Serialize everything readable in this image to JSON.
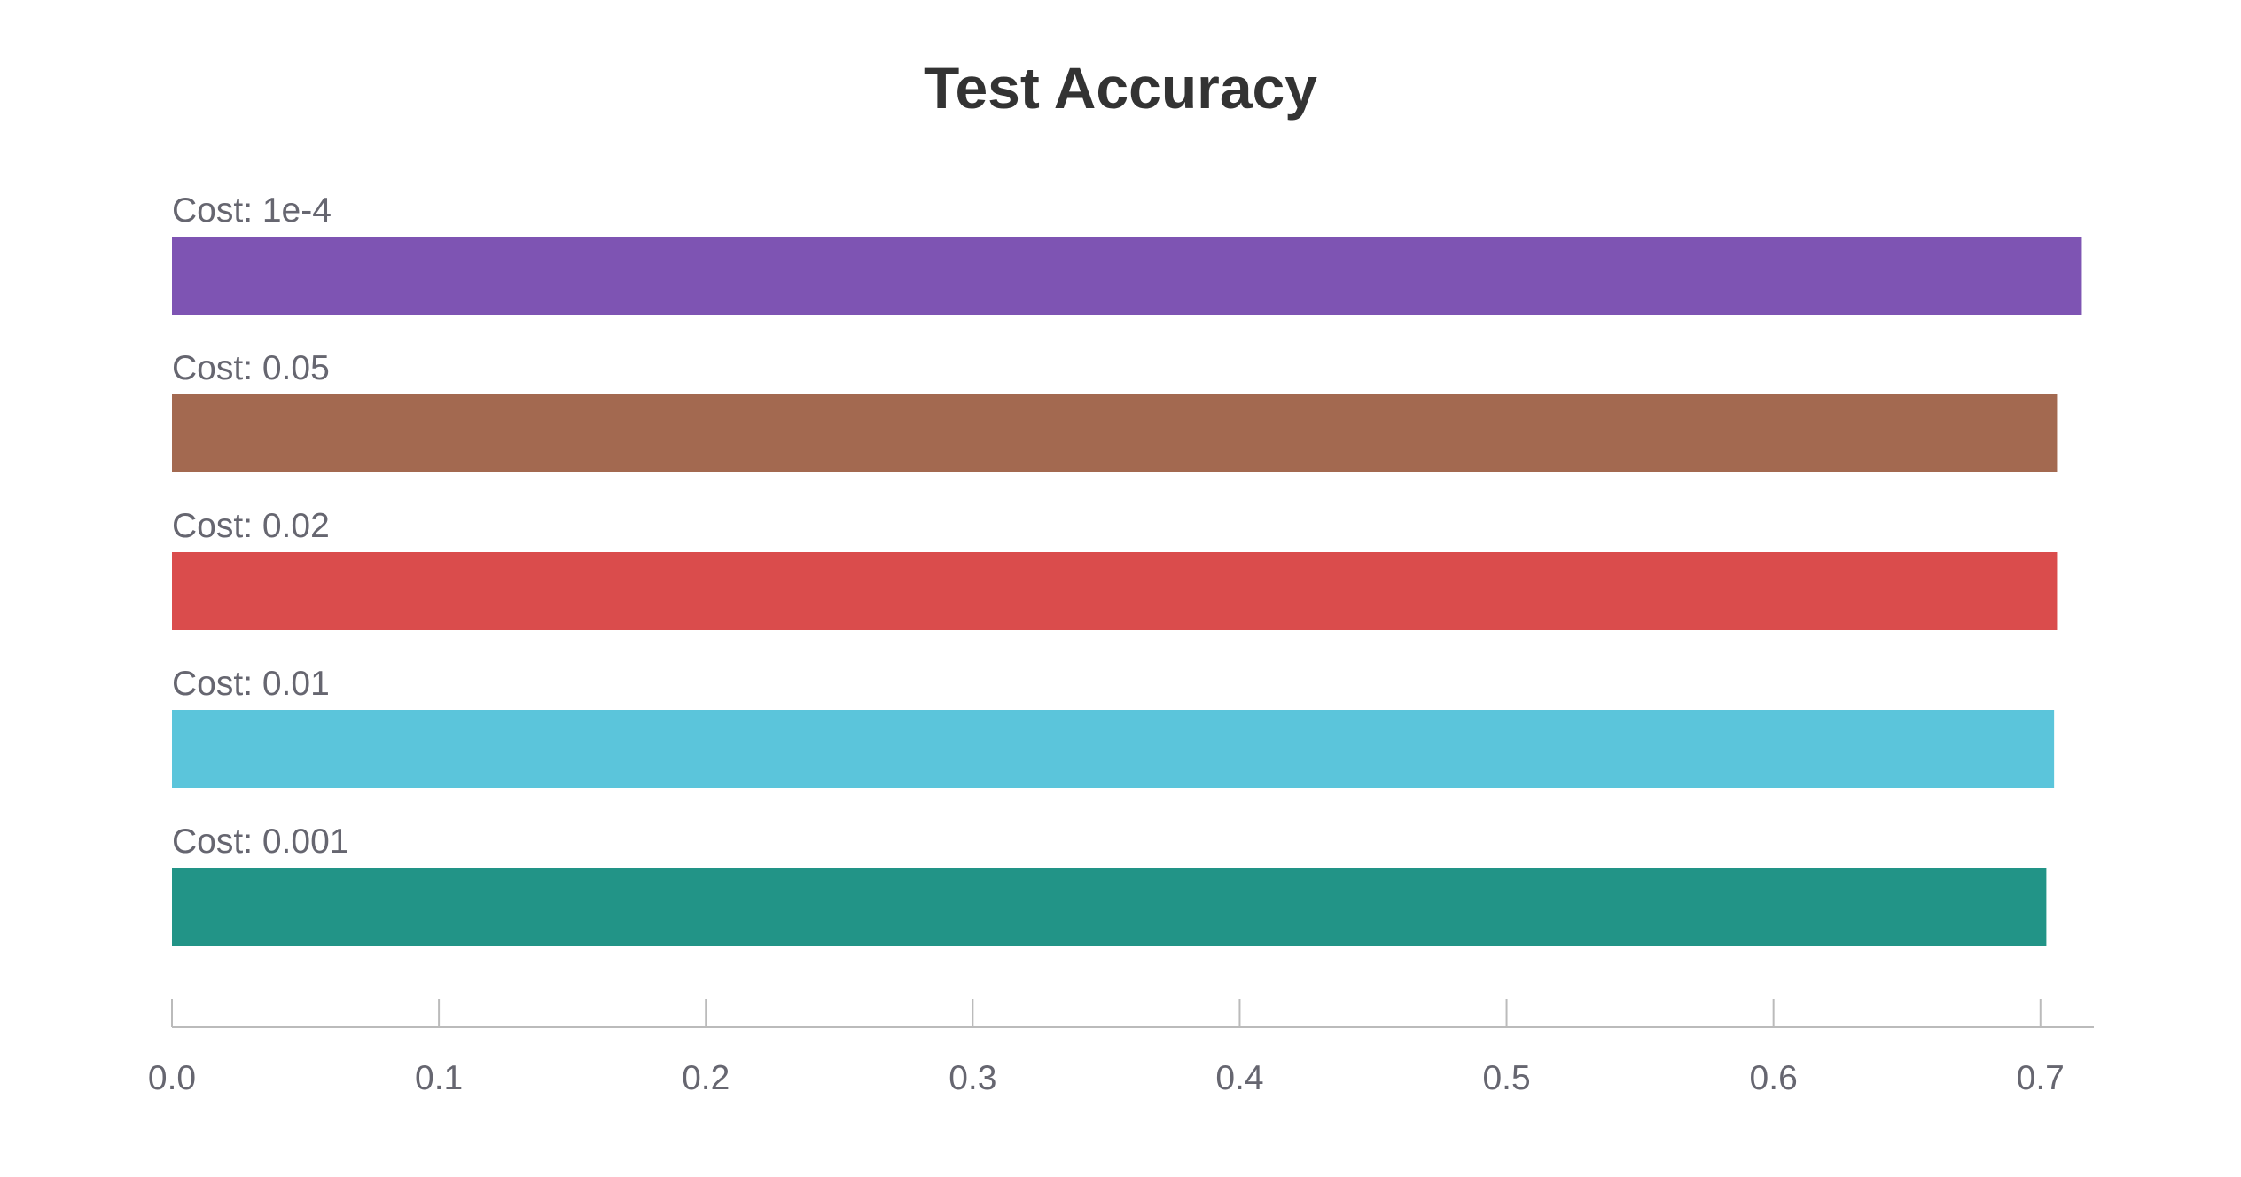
{
  "chart_data": {
    "type": "bar",
    "orientation": "horizontal",
    "title": "Test Accuracy",
    "xlabel": "",
    "ylabel": "",
    "xlim": [
      0,
      0.72
    ],
    "xticks": [
      "0.0",
      "0.1",
      "0.2",
      "0.3",
      "0.4",
      "0.5",
      "0.6",
      "0.7"
    ],
    "grid": false,
    "legend": "none",
    "bars": [
      {
        "label": "Cost: 1e-4",
        "value": 0.7155,
        "color": "#7e54b3"
      },
      {
        "label": "Cost: 0.05",
        "value": 0.7062,
        "color": "#a36950"
      },
      {
        "label": "Cost: 0.02",
        "value": 0.7062,
        "color": "#da4c4c"
      },
      {
        "label": "Cost: 0.01",
        "value": 0.7051,
        "color": "#5bc5db"
      },
      {
        "label": "Cost: 0.001",
        "value": 0.7022,
        "color": "#229487"
      }
    ]
  },
  "colors": {
    "title": "#333333",
    "label": "#666670",
    "axis": "#bbbbbb"
  }
}
